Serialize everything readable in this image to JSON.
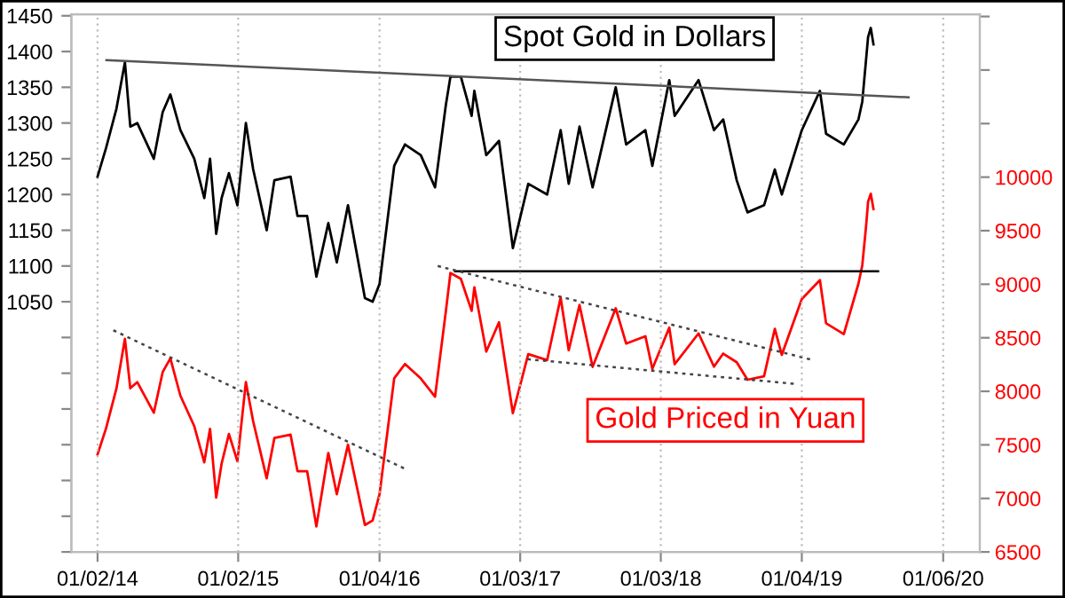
{
  "chart_data": {
    "type": "line",
    "grid": "x",
    "legend": false,
    "xlim": [
      "2013-10-26",
      "2020-04-10"
    ],
    "xticks": [
      {
        "value": "2014-01-02",
        "label": "01/02/14"
      },
      {
        "value": "2015-01-02",
        "label": "01/02/15"
      },
      {
        "value": "2016-01-04",
        "label": "01/04/16"
      },
      {
        "value": "2017-01-03",
        "label": "01/03/17"
      },
      {
        "value": "2018-01-03",
        "label": "01/03/18"
      },
      {
        "value": "2019-01-04",
        "label": "01/04/19"
      },
      {
        "value": "2020-01-06",
        "label": "01/06/20"
      }
    ],
    "ylim": [
      700,
      1452
    ],
    "yticks": [
      {
        "value": 700,
        "label": null
      },
      {
        "value": 750,
        "label": null
      },
      {
        "value": 800,
        "label": null
      },
      {
        "value": 850,
        "label": null
      },
      {
        "value": 900,
        "label": null
      },
      {
        "value": 950,
        "label": null
      },
      {
        "value": 1000,
        "label": null
      },
      1050,
      1100,
      1150,
      1200,
      1250,
      1300,
      1350,
      1400,
      1450
    ],
    "y2lim": [
      6500,
      11520
    ],
    "y2ticks": [
      6500,
      7000,
      7500,
      8000,
      8500,
      9000,
      9500,
      10000,
      {
        "value": 10500,
        "label": null
      },
      {
        "value": 11000,
        "label": null
      },
      {
        "value": 11500,
        "label": null
      }
    ],
    "series": [
      {
        "name": "Spot Gold in Dollars",
        "type": "line",
        "color": "#000000",
        "line_style": "solid",
        "x": [
          "2014-01-02",
          "2014-01-24",
          "2014-02-20",
          "2014-03-14",
          "2014-03-28",
          "2014-04-15",
          "2014-05-28",
          "2014-06-20",
          "2014-07-10",
          "2014-08-05",
          "2014-09-10",
          "2014-10-06",
          "2014-10-21",
          "2014-11-06",
          "2014-11-20",
          "2014-12-09",
          "2014-12-31",
          "2015-01-22",
          "2015-02-10",
          "2015-03-17",
          "2015-04-06",
          "2015-05-18",
          "2015-06-05",
          "2015-06-30",
          "2015-07-24",
          "2015-08-24",
          "2015-09-15",
          "2015-10-14",
          "2015-11-27",
          "2015-12-17",
          "2016-01-04",
          "2016-02-11",
          "2016-03-10",
          "2016-04-20",
          "2016-05-27",
          "2016-06-24",
          "2016-07-06",
          "2016-08-02",
          "2016-08-30",
          "2016-09-06",
          "2016-10-07",
          "2016-11-09",
          "2016-12-15",
          "2017-01-24",
          "2017-03-14",
          "2017-04-18",
          "2017-05-09",
          "2017-06-06",
          "2017-07-10",
          "2017-09-08",
          "2017-10-05",
          "2017-11-24",
          "2017-12-12",
          "2018-01-25",
          "2018-02-08",
          "2018-04-11",
          "2018-05-21",
          "2018-06-14",
          "2018-07-19",
          "2018-08-16",
          "2018-09-28",
          "2018-10-26",
          "2018-11-13",
          "2019-01-04",
          "2019-02-20",
          "2019-03-08",
          "2019-04-23",
          "2019-05-31",
          "2019-06-10",
          "2019-06-20",
          "2019-06-25",
          "2019-07-02",
          "2019-07-09"
        ],
        "values": [
          1225,
          1265,
          1320,
          1385,
          1295,
          1300,
          1250,
          1315,
          1340,
          1290,
          1250,
          1195,
          1250,
          1145,
          1195,
          1230,
          1185,
          1300,
          1235,
          1150,
          1220,
          1225,
          1170,
          1170,
          1085,
          1160,
          1105,
          1185,
          1055,
          1050,
          1075,
          1240,
          1270,
          1255,
          1210,
          1325,
          1365,
          1365,
          1310,
          1345,
          1255,
          1275,
          1125,
          1215,
          1200,
          1290,
          1215,
          1295,
          1210,
          1350,
          1270,
          1290,
          1240,
          1360,
          1310,
          1360,
          1290,
          1305,
          1220,
          1175,
          1185,
          1235,
          1200,
          1290,
          1345,
          1285,
          1270,
          1305,
          1330,
          1390,
          1420,
          1433,
          1410
        ]
      },
      {
        "name": "Gold Priced in Yuan",
        "type": "line",
        "axis": "y2",
        "color": "#ff0000",
        "line_style": "solid",
        "x": [
          "2014-01-02",
          "2014-01-24",
          "2014-02-20",
          "2014-03-14",
          "2014-03-28",
          "2014-04-15",
          "2014-05-28",
          "2014-06-20",
          "2014-07-10",
          "2014-08-05",
          "2014-09-10",
          "2014-10-06",
          "2014-10-21",
          "2014-11-06",
          "2014-11-20",
          "2014-12-09",
          "2014-12-31",
          "2015-01-22",
          "2015-02-10",
          "2015-03-17",
          "2015-04-06",
          "2015-05-18",
          "2015-06-05",
          "2015-06-30",
          "2015-07-24",
          "2015-08-24",
          "2015-09-15",
          "2015-10-14",
          "2015-11-27",
          "2015-12-17",
          "2016-01-04",
          "2016-02-11",
          "2016-03-10",
          "2016-04-20",
          "2016-05-27",
          "2016-06-24",
          "2016-07-06",
          "2016-08-02",
          "2016-08-30",
          "2016-09-06",
          "2016-10-07",
          "2016-11-09",
          "2016-12-15",
          "2017-01-24",
          "2017-03-14",
          "2017-04-18",
          "2017-05-09",
          "2017-06-06",
          "2017-07-10",
          "2017-09-08",
          "2017-10-05",
          "2017-11-24",
          "2017-12-12",
          "2018-01-25",
          "2018-02-08",
          "2018-04-11",
          "2018-05-21",
          "2018-06-14",
          "2018-07-19",
          "2018-08-16",
          "2018-09-28",
          "2018-10-26",
          "2018-11-13",
          "2019-01-04",
          "2019-02-20",
          "2019-03-08",
          "2019-04-23",
          "2019-05-31",
          "2019-06-10",
          "2019-06-20",
          "2019-06-25",
          "2019-07-02",
          "2019-07-09"
        ],
        "values": [
          7411,
          7653,
          8026,
          8490,
          8029,
          8086,
          7800,
          8179,
          8308,
          7959,
          7675,
          7337,
          7650,
          7007,
          7325,
          7601,
          7347,
          8086,
          7719,
          7188,
          7564,
          7595,
          7254,
          7254,
          6738,
          7424,
          7039,
          7501,
          6752,
          6794,
          7041,
          8122,
          8255,
          8120,
          7950,
          8745,
          9105,
          9050,
          8751,
          8971,
          8371,
          8645,
          7796,
          8347,
          8292,
          8875,
          8384,
          8806,
          8228,
          8775,
          8446,
          8514,
          8209,
          8595,
          8253,
          8541,
          8230,
          8352,
          8272,
          8108,
          8141,
          8583,
          8340,
          8862,
          9038,
          8635,
          8534,
          9005,
          9177,
          9549,
          9770,
          9845,
          9701
        ]
      },
      {
        "type": "line",
        "color": "#555555",
        "line_style": "solid",
        "x": [
          "2014-01-25",
          "2019-10-08"
        ],
        "values": [
          1388,
          1336
        ]
      },
      {
        "type": "line",
        "axis": "y2",
        "color": "#000000",
        "line_style": "solid",
        "x": [
          "2016-07-18",
          "2019-07-21"
        ],
        "values": [
          9120,
          9120
        ]
      },
      {
        "type": "line",
        "axis": "y2",
        "color": "#444444",
        "line_style": "dotted",
        "x": [
          "2014-02-12",
          "2016-03-08"
        ],
        "values": [
          8570,
          7280
        ]
      },
      {
        "type": "line",
        "axis": "y2",
        "color": "#444444",
        "line_style": "dotted",
        "x": [
          "2016-06-03",
          "2019-02-04"
        ],
        "values": [
          9170,
          8290
        ]
      },
      {
        "type": "line",
        "axis": "y2",
        "color": "#444444",
        "line_style": "dotted",
        "x": [
          "2017-01-22",
          "2018-12-16"
        ],
        "values": [
          8300,
          8070
        ]
      }
    ]
  }
}
